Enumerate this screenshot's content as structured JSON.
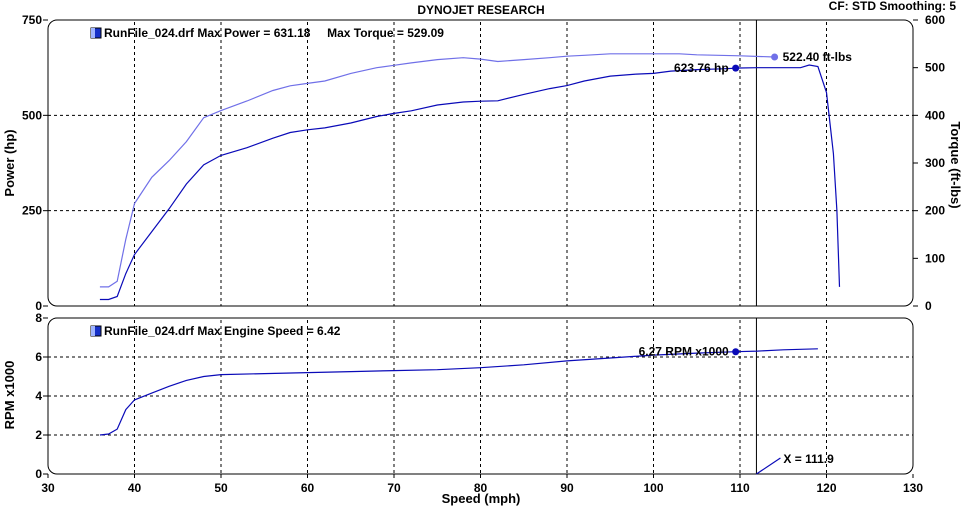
{
  "header": {
    "title": "DYNOJET RESEARCH",
    "cf_label": "CF: STD  Smoothing: 5"
  },
  "colors": {
    "power": "#0a0ab8",
    "torque": "#7070e8",
    "rpm": "#0a0ab8",
    "grid": "#000000",
    "cursor": "#000000"
  },
  "chart_data": [
    {
      "type": "line",
      "panel": "top",
      "legend_text": "RunFile_024.drf Max Power = 631.18     Max Torque = 529.09",
      "xlabel": "Speed (mph)",
      "ylabel": "Power (hp)",
      "ylabel_right": "Torque (ft-lbs)",
      "xlim": [
        30,
        130
      ],
      "ylim": [
        0,
        750
      ],
      "ylim_right": [
        0,
        600
      ],
      "yticks": [
        0,
        250,
        500,
        750
      ],
      "yticks_right": [
        0,
        100,
        200,
        300,
        400,
        500,
        600
      ],
      "grid": true,
      "series": [
        {
          "axis": "left",
          "color_key": "power",
          "points": [
            [
              36,
              17
            ],
            [
              37,
              17
            ],
            [
              38,
              25
            ],
            [
              39,
              85
            ],
            [
              40,
              135
            ],
            [
              42,
              195
            ],
            [
              44,
              255
            ],
            [
              46,
              320
            ],
            [
              48,
              370
            ],
            [
              50,
              395
            ],
            [
              53,
              415
            ],
            [
              56,
              440
            ],
            [
              58,
              455
            ],
            [
              60,
              462
            ],
            [
              62,
              467
            ],
            [
              65,
              480
            ],
            [
              68,
              497
            ],
            [
              70,
              505
            ],
            [
              72,
              512
            ],
            [
              75,
              527
            ],
            [
              78,
              535
            ],
            [
              80,
              537
            ],
            [
              82,
              538
            ],
            [
              85,
              555
            ],
            [
              88,
              570
            ],
            [
              90,
              578
            ],
            [
              92,
              590
            ],
            [
              95,
              603
            ],
            [
              98,
              608
            ],
            [
              100,
              610
            ],
            [
              102,
              616
            ],
            [
              105,
              620
            ],
            [
              108,
              622
            ],
            [
              110,
              624
            ],
            [
              112,
              625
            ],
            [
              115,
              625
            ],
            [
              117,
              625
            ],
            [
              118,
              632
            ],
            [
              119,
              628
            ],
            [
              120,
              560
            ],
            [
              120.8,
              400
            ],
            [
              121.2,
              250
            ],
            [
              121.5,
              50
            ]
          ]
        },
        {
          "axis": "right",
          "color_key": "torque",
          "points": [
            [
              36,
              40
            ],
            [
              37,
              40
            ],
            [
              38,
              52
            ],
            [
              39,
              140
            ],
            [
              40,
              215
            ],
            [
              42,
              270
            ],
            [
              44,
              305
            ],
            [
              46,
              345
            ],
            [
              48,
              395
            ],
            [
              50,
              410
            ],
            [
              53,
              430
            ],
            [
              56,
              452
            ],
            [
              58,
              462
            ],
            [
              60,
              467
            ],
            [
              62,
              472
            ],
            [
              65,
              488
            ],
            [
              68,
              500
            ],
            [
              70,
              505
            ],
            [
              72,
              510
            ],
            [
              75,
              517
            ],
            [
              78,
              521
            ],
            [
              80,
              518
            ],
            [
              82,
              513
            ],
            [
              85,
              517
            ],
            [
              88,
              521
            ],
            [
              90,
              524
            ],
            [
              92,
              526
            ],
            [
              95,
              529
            ],
            [
              100,
              529
            ],
            [
              103,
              529
            ],
            [
              105,
              527
            ],
            [
              110,
              525
            ],
            [
              114,
              522.4
            ]
          ]
        }
      ],
      "annotations": [
        {
          "series": 0,
          "x": 109.5,
          "y": 623.76,
          "label": "623.76 hp"
        },
        {
          "series": 1,
          "x": 114,
          "y": 522.4,
          "label": "522.40 ft-lbs"
        }
      ],
      "cursor_x": 111.9
    },
    {
      "type": "line",
      "panel": "bottom",
      "legend_text": "RunFile_024.drf Max Engine Speed = 6.42",
      "ylabel": "RPM x1000",
      "xlim": [
        30,
        130
      ],
      "ylim": [
        0,
        8
      ],
      "yticks": [
        0,
        2,
        4,
        6,
        8
      ],
      "xticks": [
        30,
        40,
        50,
        60,
        70,
        80,
        90,
        100,
        110,
        120,
        130
      ],
      "grid": true,
      "series": [
        {
          "axis": "left",
          "color_key": "rpm",
          "points": [
            [
              36,
              2.0
            ],
            [
              37,
              2.05
            ],
            [
              38,
              2.3
            ],
            [
              39,
              3.3
            ],
            [
              40,
              3.8
            ],
            [
              42,
              4.15
            ],
            [
              44,
              4.5
            ],
            [
              46,
              4.8
            ],
            [
              48,
              5.0
            ],
            [
              50,
              5.1
            ],
            [
              55,
              5.15
            ],
            [
              60,
              5.2
            ],
            [
              65,
              5.25
            ],
            [
              70,
              5.3
            ],
            [
              75,
              5.35
            ],
            [
              80,
              5.45
            ],
            [
              85,
              5.6
            ],
            [
              90,
              5.8
            ],
            [
              95,
              5.95
            ],
            [
              100,
              6.1
            ],
            [
              105,
              6.2
            ],
            [
              109.5,
              6.27
            ],
            [
              112,
              6.3
            ],
            [
              115,
              6.37
            ],
            [
              119,
              6.42
            ]
          ]
        }
      ],
      "annotations": [
        {
          "series": 0,
          "x": 109.5,
          "y": 6.27,
          "label": "6.27 RPM x1000"
        }
      ],
      "cursor_x": 111.9,
      "cursor_label": "X = 111.9"
    }
  ]
}
